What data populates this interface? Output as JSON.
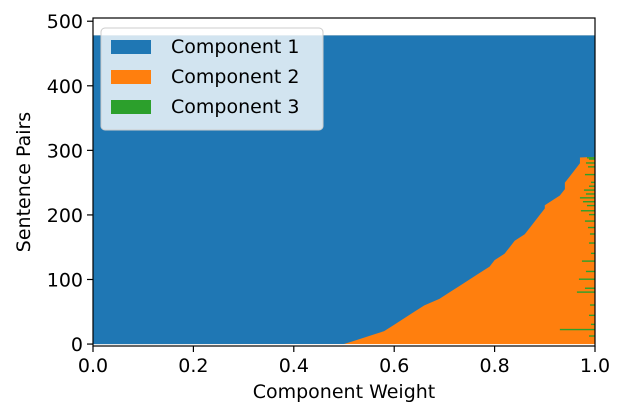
{
  "chart_data": {
    "type": "area",
    "orientation": "horizontal-stacked",
    "xlabel": "Component Weight",
    "ylabel": "Sentence Pairs",
    "xlim": [
      0.0,
      1.0
    ],
    "ylim": [
      -3,
      505
    ],
    "xticks": [
      0.0,
      0.2,
      0.4,
      0.6,
      0.8,
      1.0
    ],
    "xtick_labels": [
      "0.0",
      "0.2",
      "0.4",
      "0.6",
      "0.8",
      "1.0"
    ],
    "yticks": [
      0,
      100,
      200,
      300,
      400,
      500
    ],
    "ytick_labels": [
      "0",
      "100",
      "200",
      "300",
      "400",
      "500"
    ],
    "grid": false,
    "legend_position": "top-left",
    "n_pairs": 478,
    "series": [
      {
        "name": "Component 1",
        "color": "#1f77b4"
      },
      {
        "name": "Component 2",
        "color": "#ff7f0e"
      },
      {
        "name": "Component 3",
        "color": "#2ca02c"
      }
    ],
    "component1_weight_by_pair": {
      "pairs": [
        0,
        5,
        10,
        15,
        20,
        30,
        40,
        50,
        60,
        70,
        80,
        90,
        100,
        110,
        120,
        130,
        140,
        150,
        160,
        170,
        180,
        190,
        200,
        210,
        215,
        220,
        230,
        240,
        250,
        260,
        270,
        280,
        289,
        290,
        478
      ],
      "weights": [
        0.5,
        0.52,
        0.54,
        0.56,
        0.58,
        0.6,
        0.62,
        0.64,
        0.66,
        0.69,
        0.71,
        0.73,
        0.75,
        0.77,
        0.79,
        0.8,
        0.82,
        0.83,
        0.84,
        0.86,
        0.87,
        0.88,
        0.89,
        0.9,
        0.9,
        0.91,
        0.93,
        0.94,
        0.94,
        0.95,
        0.96,
        0.97,
        0.97,
        1.0,
        1.0
      ]
    },
    "component3_segments": [
      {
        "pair": 288,
        "weight": 0.016
      },
      {
        "pair": 286,
        "weight": 0.012
      },
      {
        "pair": 280,
        "weight": 0.018
      },
      {
        "pair": 274,
        "weight": 0.014
      },
      {
        "pair": 262,
        "weight": 0.02
      },
      {
        "pair": 250,
        "weight": 0.008
      },
      {
        "pair": 244,
        "weight": 0.012
      },
      {
        "pair": 238,
        "weight": 0.022
      },
      {
        "pair": 232,
        "weight": 0.018
      },
      {
        "pair": 226,
        "weight": 0.03
      },
      {
        "pair": 220,
        "weight": 0.024
      },
      {
        "pair": 214,
        "weight": 0.016
      },
      {
        "pair": 206,
        "weight": 0.028
      },
      {
        "pair": 200,
        "weight": 0.012
      },
      {
        "pair": 190,
        "weight": 0.02
      },
      {
        "pair": 180,
        "weight": 0.014
      },
      {
        "pair": 170,
        "weight": 0.01
      },
      {
        "pair": 156,
        "weight": 0.012
      },
      {
        "pair": 140,
        "weight": 0.008
      },
      {
        "pair": 128,
        "weight": 0.026
      },
      {
        "pair": 112,
        "weight": 0.018
      },
      {
        "pair": 100,
        "weight": 0.032
      },
      {
        "pair": 86,
        "weight": 0.02
      },
      {
        "pair": 80,
        "weight": 0.036
      },
      {
        "pair": 60,
        "weight": 0.01
      },
      {
        "pair": 44,
        "weight": 0.012
      },
      {
        "pair": 30,
        "weight": 0.008
      },
      {
        "pair": 22,
        "weight": 0.07
      },
      {
        "pair": 12,
        "weight": 0.012
      }
    ]
  }
}
